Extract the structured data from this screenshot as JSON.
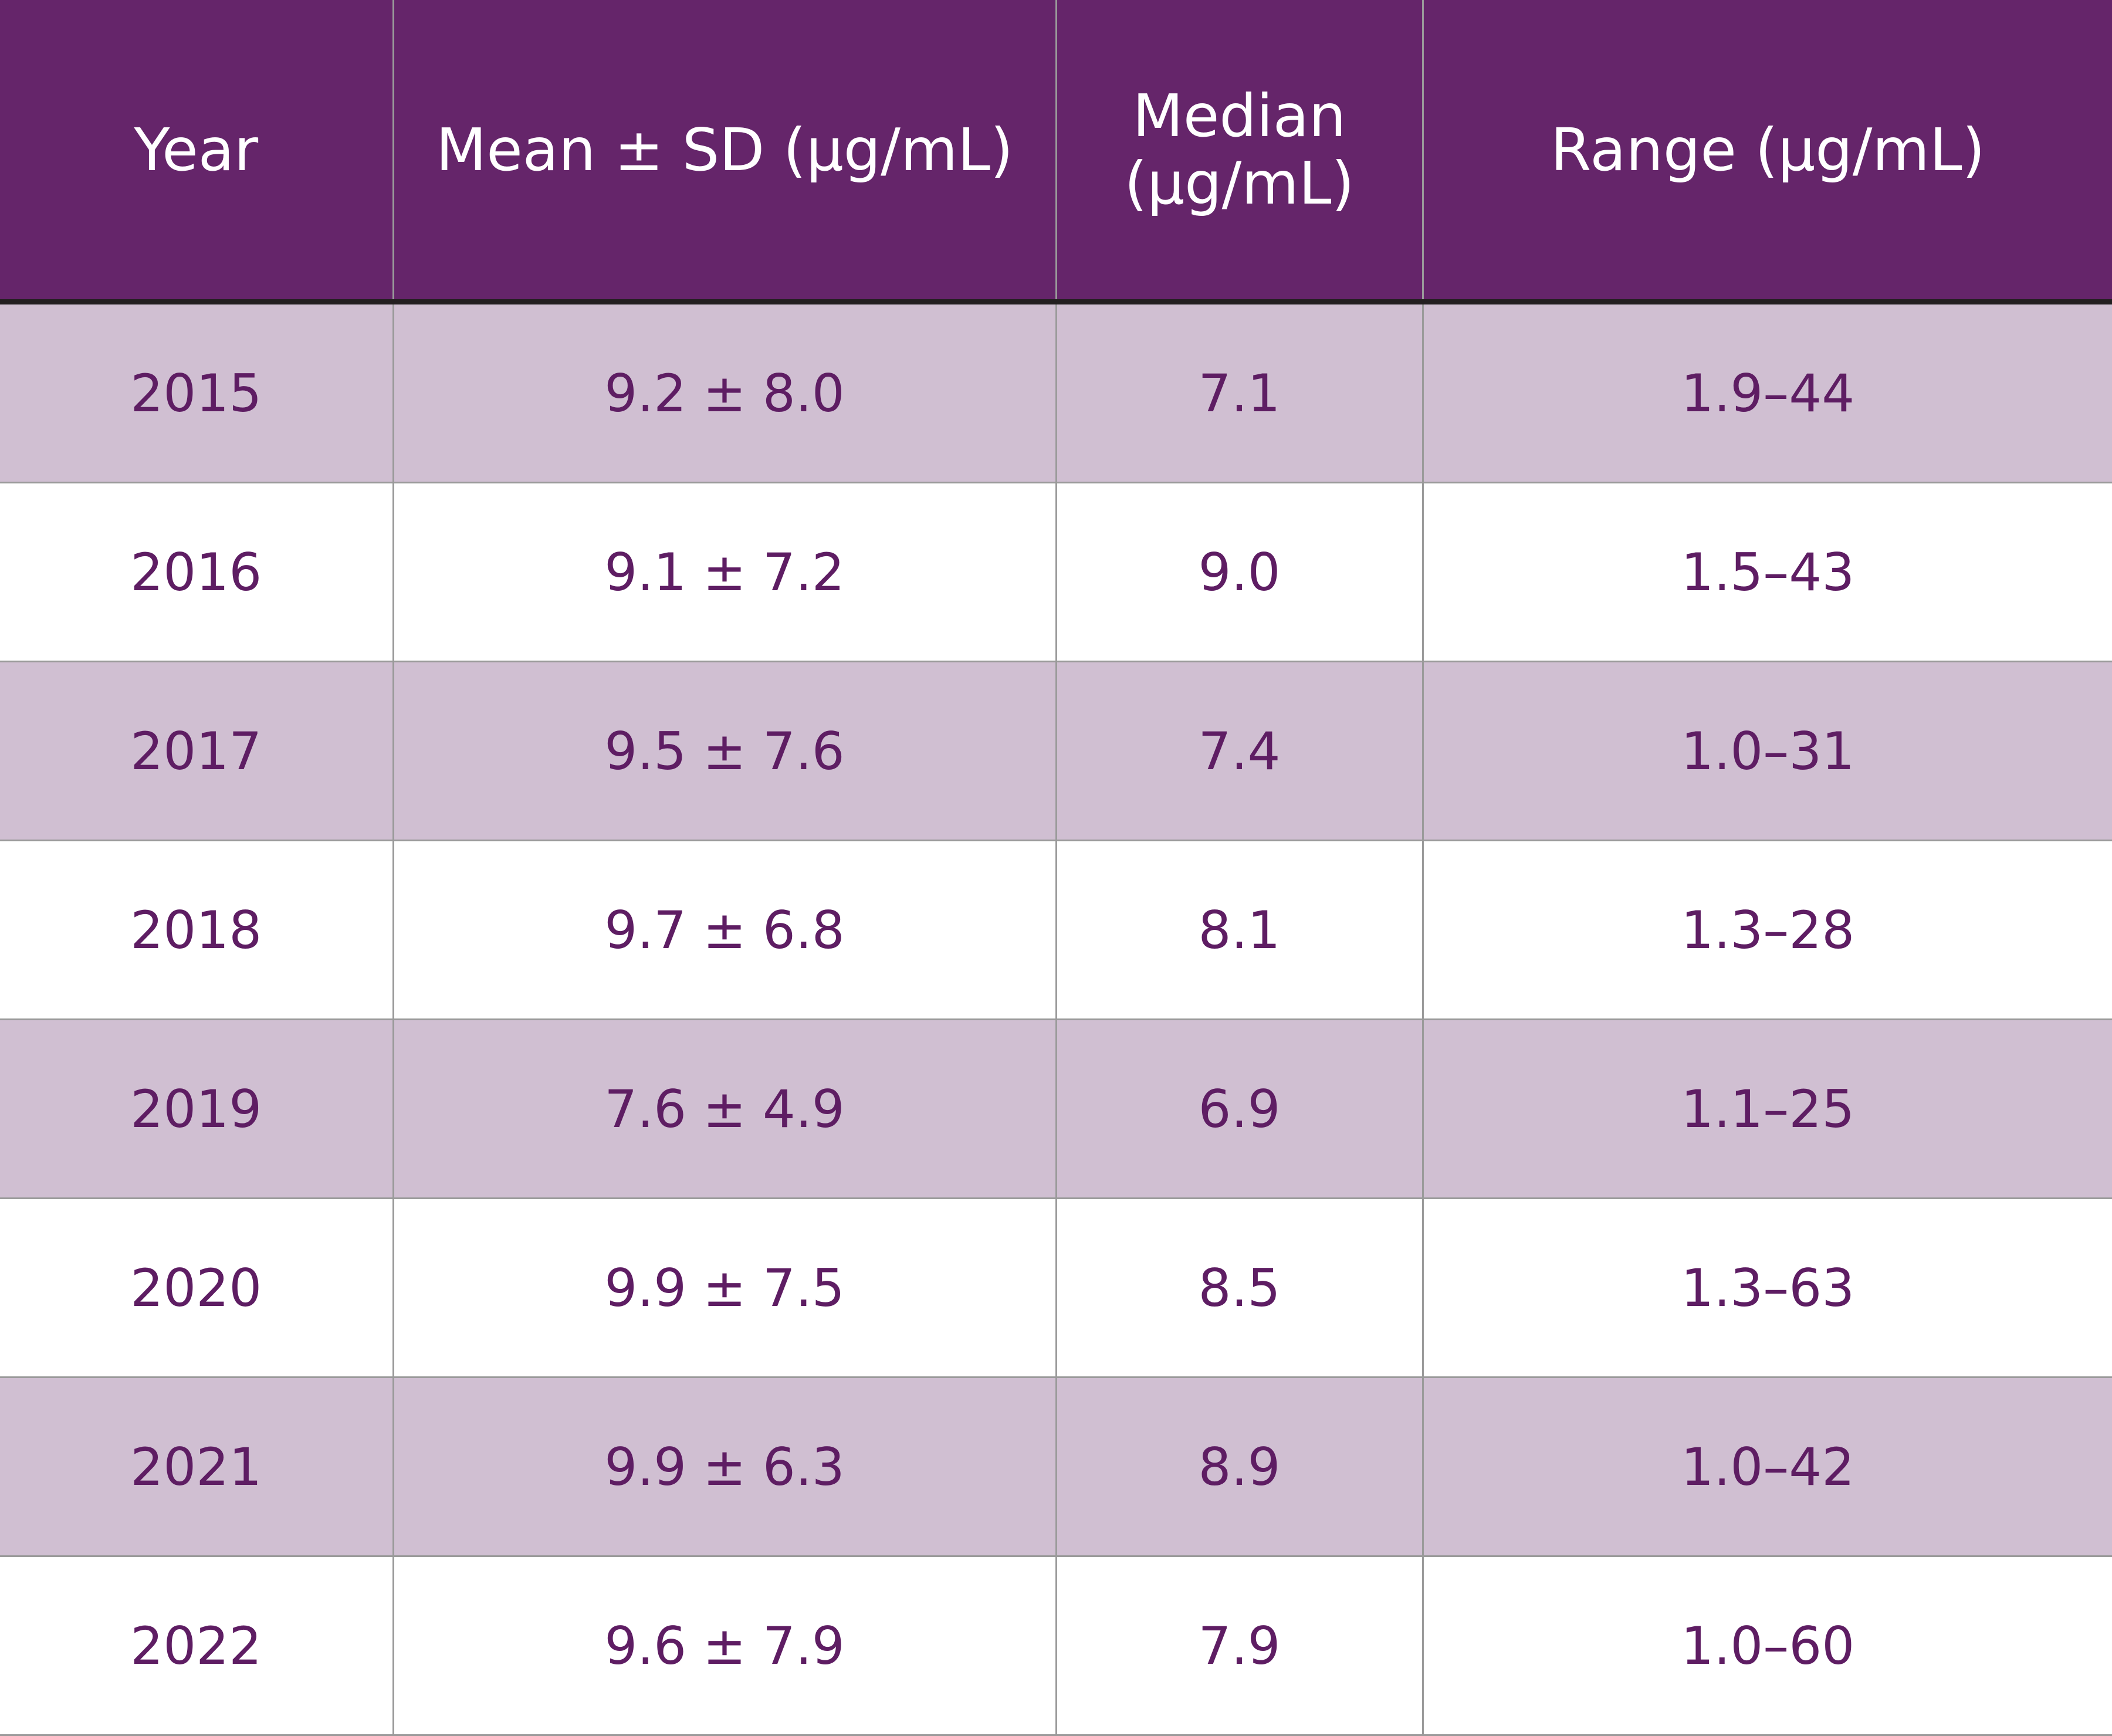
{
  "table": {
    "columns": [
      "Year",
      "Mean ± SD (µg/mL)",
      "Median (µg/mL)",
      "Range (µg/mL)"
    ],
    "rows": [
      [
        "2015",
        "9.2 ± 8.0",
        "7.1",
        "1.9–44"
      ],
      [
        "2016",
        "9.1 ± 7.2",
        "9.0",
        "1.5–43"
      ],
      [
        "2017",
        "9.5 ± 7.6",
        "7.4",
        "1.0–31"
      ],
      [
        "2018",
        "9.7 ± 6.8",
        "8.1",
        "1.3–28"
      ],
      [
        "2019",
        "7.6 ± 4.9",
        "6.9",
        "1.1–25"
      ],
      [
        "2020",
        "9.9 ± 7.5",
        "8.5",
        "1.3–63"
      ],
      [
        "2021",
        "9.9 ± 6.3",
        "8.9",
        "1.0–42"
      ],
      [
        "2022",
        "9.6 ± 7.9",
        "7.9",
        "1.0–60"
      ]
    ]
  }
}
